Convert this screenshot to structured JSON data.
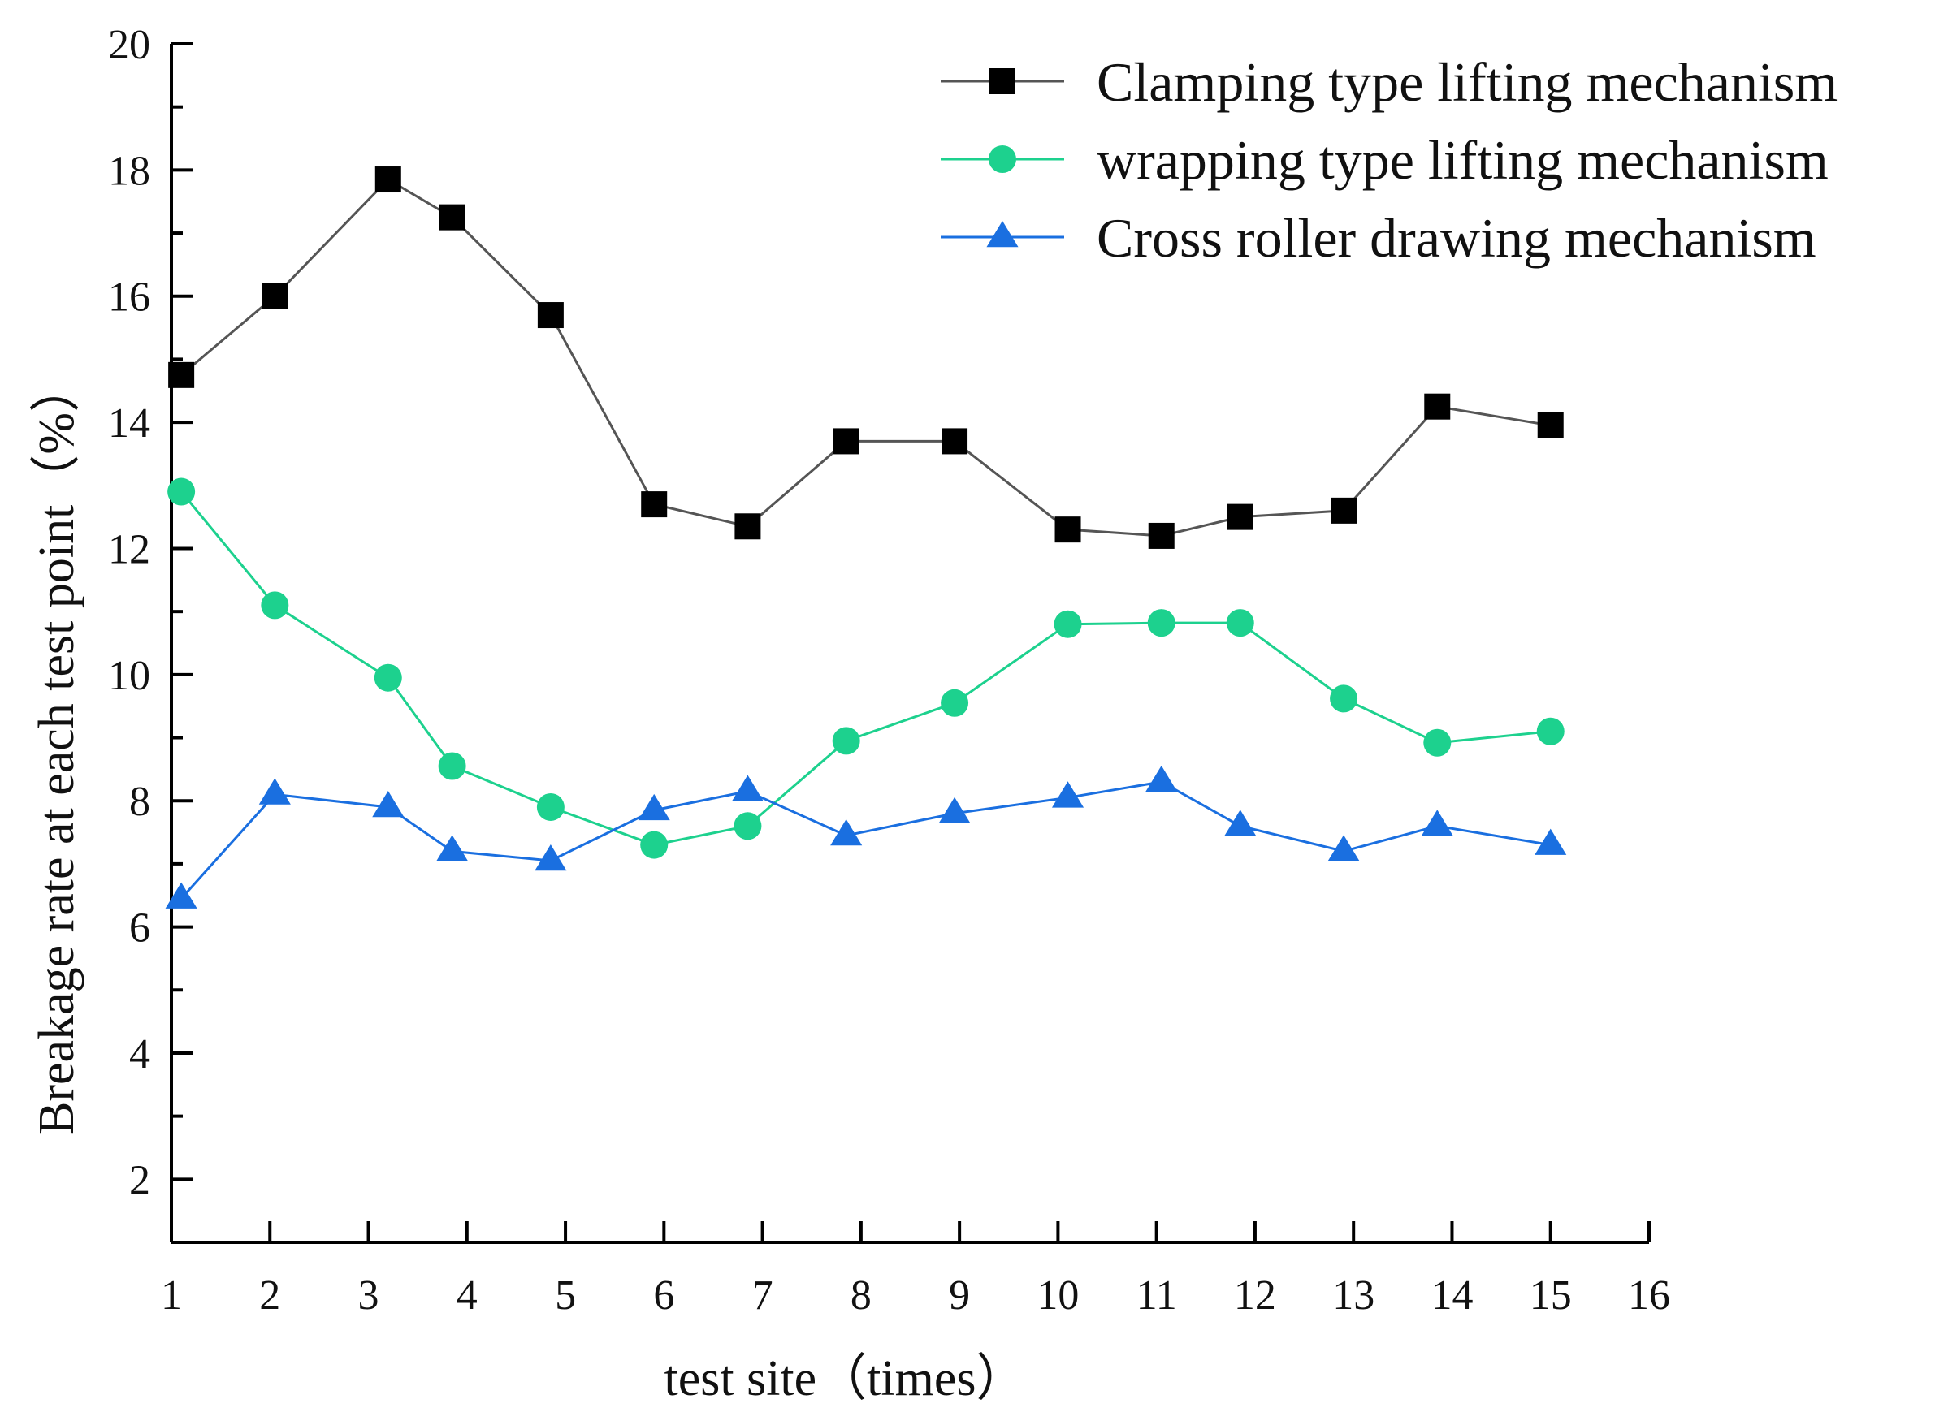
{
  "chart_data": {
    "type": "line",
    "title": "",
    "xlabel": "test site（times）",
    "ylabel": "Breakage rate at each test point（%）",
    "xlim": [
      1,
      16
    ],
    "ylim": [
      1,
      20
    ],
    "x_ticks": [
      1,
      2,
      3,
      4,
      5,
      6,
      7,
      8,
      9,
      10,
      11,
      12,
      13,
      14,
      15,
      16
    ],
    "y_ticks": [
      2,
      4,
      6,
      8,
      10,
      12,
      14,
      16,
      18,
      20
    ],
    "grid": false,
    "legend_position": "top-right",
    "series": [
      {
        "name": "Clamping type lifting mechanism",
        "marker": "square",
        "color": "#000000",
        "line_color": "#555555",
        "x": [
          1.1,
          2.05,
          3.2,
          3.85,
          4.85,
          5.9,
          6.85,
          7.85,
          8.95,
          10.1,
          11.05,
          11.85,
          12.9,
          13.85,
          15.0
        ],
        "y": [
          14.75,
          16.0,
          17.85,
          17.25,
          15.7,
          12.7,
          12.35,
          13.7,
          13.7,
          12.3,
          12.2,
          12.5,
          12.6,
          14.25,
          13.95
        ]
      },
      {
        "name": "wrapping type lifting mechanism",
        "marker": "circle",
        "color": "#1dd18e",
        "line_color": "#1dd18e",
        "x": [
          1.1,
          2.05,
          3.2,
          3.85,
          4.85,
          5.9,
          6.85,
          7.85,
          8.95,
          10.1,
          11.05,
          11.85,
          12.9,
          13.85,
          15.0
        ],
        "y": [
          12.9,
          11.1,
          9.95,
          8.55,
          7.9,
          7.3,
          7.6,
          8.95,
          9.55,
          10.8,
          10.82,
          10.82,
          9.62,
          8.92,
          9.1
        ]
      },
      {
        "name": "Cross roller drawing mechanism",
        "marker": "triangle",
        "color": "#1a6fe0",
        "line_color": "#1a6fe0",
        "x": [
          1.1,
          2.05,
          3.2,
          3.85,
          4.85,
          5.9,
          6.85,
          7.85,
          8.95,
          10.1,
          11.05,
          11.85,
          12.9,
          13.85,
          15.0
        ],
        "y": [
          6.45,
          8.1,
          7.9,
          7.2,
          7.05,
          7.85,
          8.15,
          7.45,
          7.8,
          8.05,
          8.3,
          7.6,
          7.2,
          7.6,
          7.3
        ]
      }
    ]
  }
}
